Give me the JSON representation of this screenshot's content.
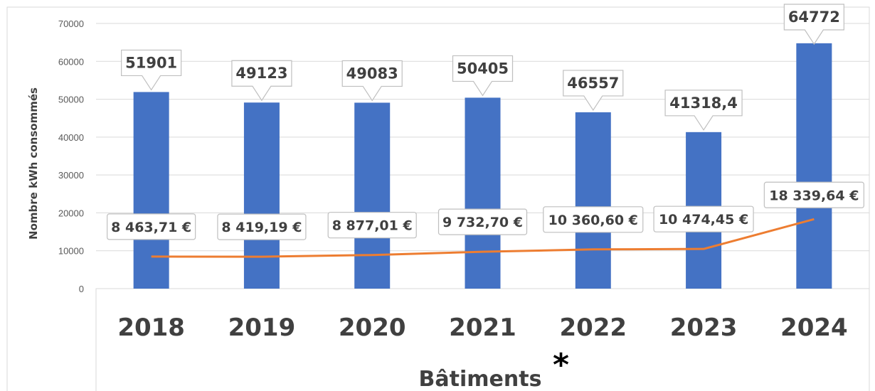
{
  "chart_data": {
    "type": "bar",
    "categories": [
      "2018",
      "2019",
      "2020",
      "2021",
      "2022",
      "2023",
      "2024"
    ],
    "series": [
      {
        "type": "bar",
        "values": [
          51901,
          49123,
          49083,
          50405,
          46557,
          41318.4,
          64772
        ],
        "labels": [
          "51901",
          "49123",
          "49083",
          "50405",
          "46557",
          "41318,4",
          "64772"
        ],
        "color": "#4472C4"
      },
      {
        "type": "line",
        "values": [
          8463.71,
          8419.19,
          8877.01,
          9732.7,
          10360.6,
          10474.45,
          18339.64
        ],
        "labels": [
          "8 463,71 €",
          "8 419,19 €",
          "8 877,01 €",
          "9 732,70 €",
          "10 360,60 €",
          "10 474,45 €",
          "18 339,64 €"
        ],
        "color": "#ED7D31"
      }
    ],
    "ylabel": "Nombre kWh consommés",
    "xlabel": "Bâtiments",
    "xlabel_mark": "*",
    "ylim": [
      0,
      70000
    ],
    "yticks": [
      "0",
      "10000",
      "20000",
      "30000",
      "40000",
      "50000",
      "60000",
      "70000"
    ],
    "grid": true,
    "legend": "none"
  }
}
